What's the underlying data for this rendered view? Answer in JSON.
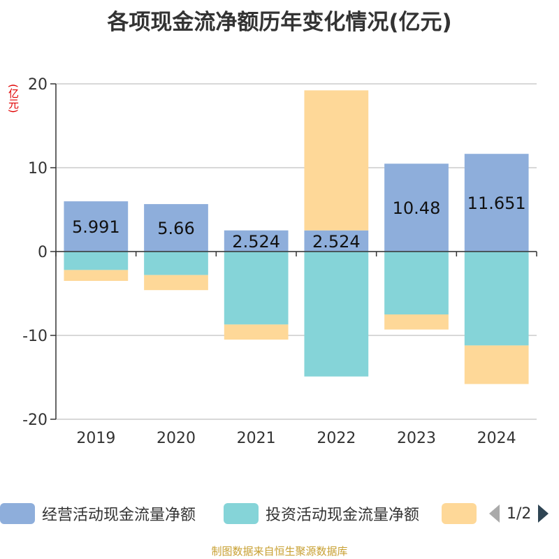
{
  "title": "各项现金流净额历年变化情况(亿元)",
  "y_unit": "(亿元)",
  "source": "制图数据来自恒生聚源数据库",
  "pager": {
    "text": "1/2"
  },
  "chart_data": {
    "type": "bar",
    "stacked": true,
    "title": "各项现金流净额历年变化情况(亿元)",
    "ylabel": "(亿元)",
    "categories": [
      "2019",
      "2020",
      "2021",
      "2022",
      "2023",
      "2024"
    ],
    "ylim": [
      -20,
      20
    ],
    "yticks": [
      20,
      10,
      0,
      -10,
      -20
    ],
    "grid": true,
    "legend_position": "bottom",
    "series": [
      {
        "name": "经营活动现金流量净额",
        "color": "#8eaedb",
        "values": [
          5.991,
          5.66,
          2.524,
          2.524,
          10.48,
          11.651
        ],
        "labels": [
          "5.991",
          "5.66",
          "2.524",
          "2.524",
          "10.48",
          "11.651"
        ]
      },
      {
        "name": "投资活动现金流量净额",
        "color": "#85d4d8",
        "values": [
          -2.2,
          -2.8,
          -8.7,
          -14.9,
          -7.5,
          -11.2
        ]
      },
      {
        "name": "",
        "color": "#fed898",
        "values": [
          -1.3,
          -1.8,
          -1.8,
          16.7,
          -1.8,
          -4.6
        ]
      }
    ]
  }
}
